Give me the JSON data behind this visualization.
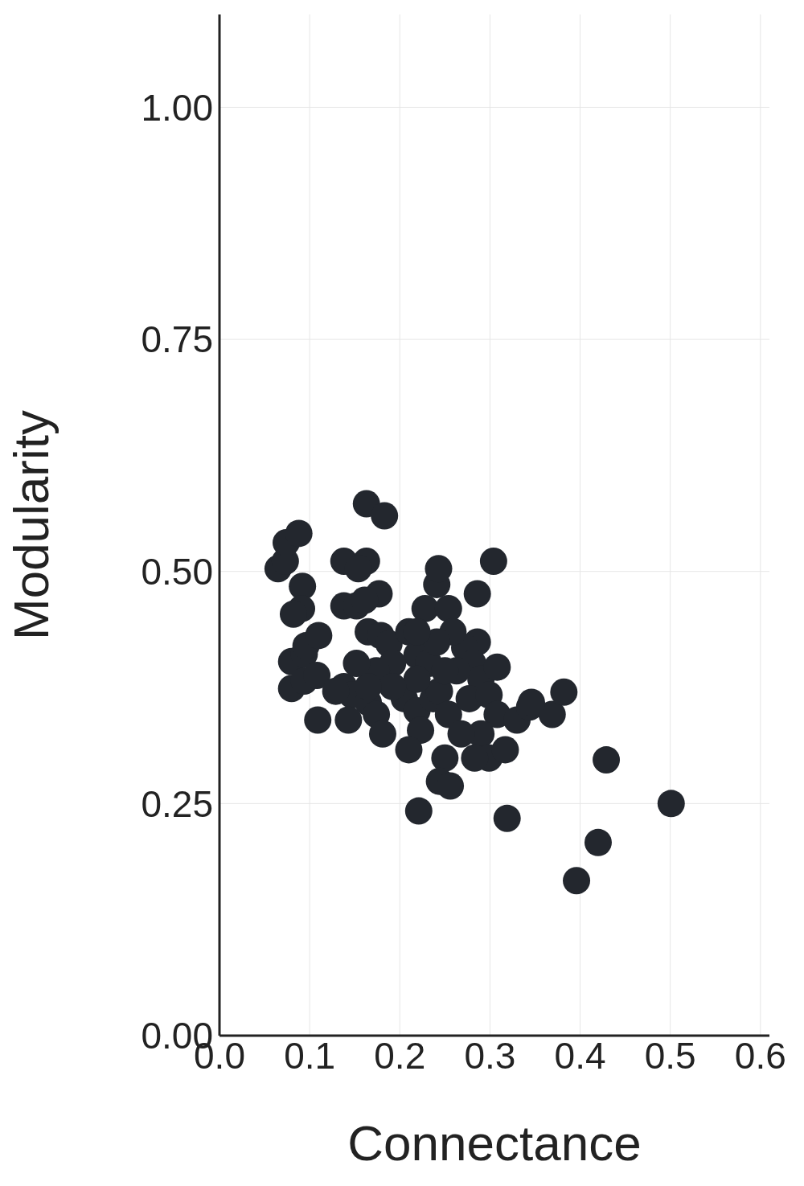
{
  "chart_data": {
    "type": "scatter",
    "xlabel": "Connectance",
    "ylabel": "Modularity",
    "xlim": [
      0,
      0.61
    ],
    "ylim": [
      0,
      1.1
    ],
    "xticks": [
      {
        "value": 0,
        "label": "0.0"
      },
      {
        "value": 0.1,
        "label": "0.1"
      },
      {
        "value": 0.2,
        "label": "0.2"
      },
      {
        "value": 0.3,
        "label": "0.3"
      },
      {
        "value": 0.4,
        "label": "0.4"
      },
      {
        "value": 0.5,
        "label": "0.5"
      },
      {
        "value": 0.6,
        "label": "0.6"
      }
    ],
    "yticks": [
      {
        "value": 0,
        "label": "0.00"
      },
      {
        "value": 0.25,
        "label": "0.25"
      },
      {
        "value": 0.5,
        "label": "0.50"
      },
      {
        "value": 0.75,
        "label": "0.75"
      },
      {
        "value": 1,
        "label": "1.00"
      }
    ],
    "grid": true,
    "marker": "circle",
    "legend": false,
    "series": [
      {
        "color": "#23272e",
        "x": [
          0.065,
          0.073,
          0.074,
          0.088,
          0.092,
          0.091,
          0.082,
          0.08,
          0.094,
          0.096,
          0.08,
          0.094,
          0.11,
          0.108,
          0.109,
          0.138,
          0.163,
          0.154,
          0.138,
          0.152,
          0.177,
          0.161,
          0.163,
          0.183,
          0.165,
          0.179,
          0.188,
          0.21,
          0.219,
          0.232,
          0.192,
          0.174,
          0.138,
          0.147,
          0.129,
          0.143,
          0.165,
          0.174,
          0.181,
          0.205,
          0.219,
          0.223,
          0.21,
          0.237,
          0.244,
          0.254,
          0.25,
          0.244,
          0.256,
          0.221,
          0.319,
          0.228,
          0.241,
          0.243,
          0.254,
          0.286,
          0.286,
          0.304,
          0.272,
          0.281,
          0.29,
          0.263,
          0.277,
          0.299,
          0.308,
          0.29,
          0.299,
          0.317,
          0.33,
          0.344,
          0.369,
          0.382,
          0.346,
          0.268,
          0.259,
          0.25,
          0.219,
          0.192,
          0.241,
          0.308,
          0.165,
          0.152,
          0.219,
          0.429,
          0.501,
          0.42,
          0.396,
          0.283
        ],
        "values": [
          0.503,
          0.511,
          0.531,
          0.541,
          0.484,
          0.46,
          0.454,
          0.403,
          0.411,
          0.42,
          0.374,
          0.382,
          0.431,
          0.388,
          0.34,
          0.511,
          0.511,
          0.503,
          0.463,
          0.463,
          0.476,
          0.469,
          0.573,
          0.56,
          0.435,
          0.431,
          0.422,
          0.435,
          0.41,
          0.401,
          0.401,
          0.393,
          0.376,
          0.367,
          0.371,
          0.34,
          0.359,
          0.346,
          0.325,
          0.363,
          0.35,
          0.329,
          0.308,
          0.363,
          0.371,
          0.346,
          0.299,
          0.274,
          0.269,
          0.242,
          0.234,
          0.46,
          0.486,
          0.503,
          0.46,
          0.476,
          0.424,
          0.511,
          0.418,
          0.401,
          0.384,
          0.393,
          0.363,
          0.367,
          0.346,
          0.325,
          0.299,
          0.308,
          0.34,
          0.354,
          0.346,
          0.37,
          0.359,
          0.325,
          0.435,
          0.393,
          0.384,
          0.376,
          0.424,
          0.397,
          0.376,
          0.401,
          0.435,
          0.297,
          0.25,
          0.208,
          0.167,
          0.299
        ]
      }
    ]
  }
}
